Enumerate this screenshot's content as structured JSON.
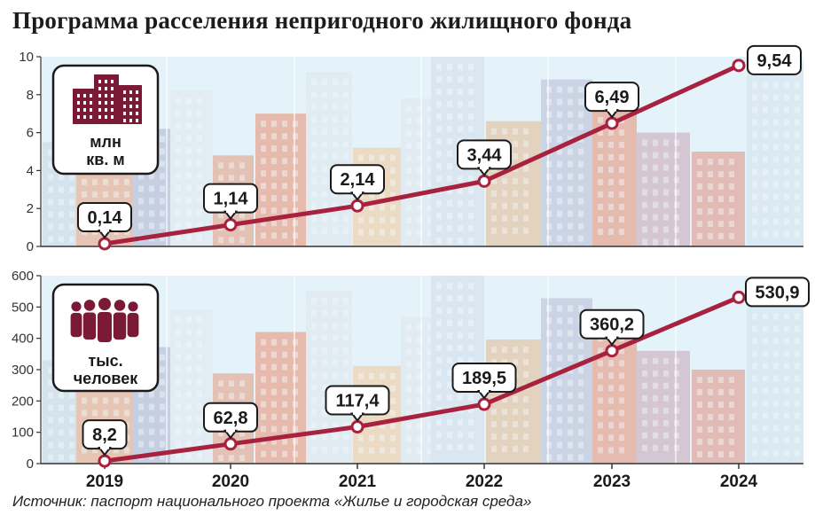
{
  "title": "Программа расселения непригодного жилищного фонда",
  "source": "Источник: паспорт национального проекта «Жилье и городская среда»",
  "colors": {
    "line": "#a8223f",
    "marker_fill": "#ffffff",
    "sky": "#e4f2f9",
    "axis": "#333333"
  },
  "chart_data": [
    {
      "type": "line",
      "unit_label": [
        "млн",
        "кв. м"
      ],
      "unit_icon": "buildings-icon",
      "x": [
        "2019",
        "2020",
        "2021",
        "2022",
        "2023",
        "2024"
      ],
      "values": [
        0.14,
        1.14,
        2.14,
        3.44,
        6.49,
        9.54
      ],
      "data_labels": [
        "0,14",
        "1,14",
        "2,14",
        "3,44",
        "6,49",
        "9,54"
      ],
      "y_ticks": [
        "0",
        "2",
        "4",
        "6",
        "8",
        "10"
      ],
      "ylim": [
        0,
        10
      ]
    },
    {
      "type": "line",
      "unit_label": [
        "тыс.",
        "человек"
      ],
      "unit_icon": "people-icon",
      "x": [
        "2019",
        "2020",
        "2021",
        "2022",
        "2023",
        "2024"
      ],
      "values": [
        8.2,
        62.8,
        117.4,
        189.5,
        360.2,
        530.9
      ],
      "data_labels": [
        "8,2",
        "62,8",
        "117,4",
        "189,5",
        "360,2",
        "530,9"
      ],
      "y_ticks": [
        "0",
        "100",
        "200",
        "300",
        "400",
        "500",
        "600"
      ],
      "ylim": [
        0,
        600
      ]
    }
  ]
}
